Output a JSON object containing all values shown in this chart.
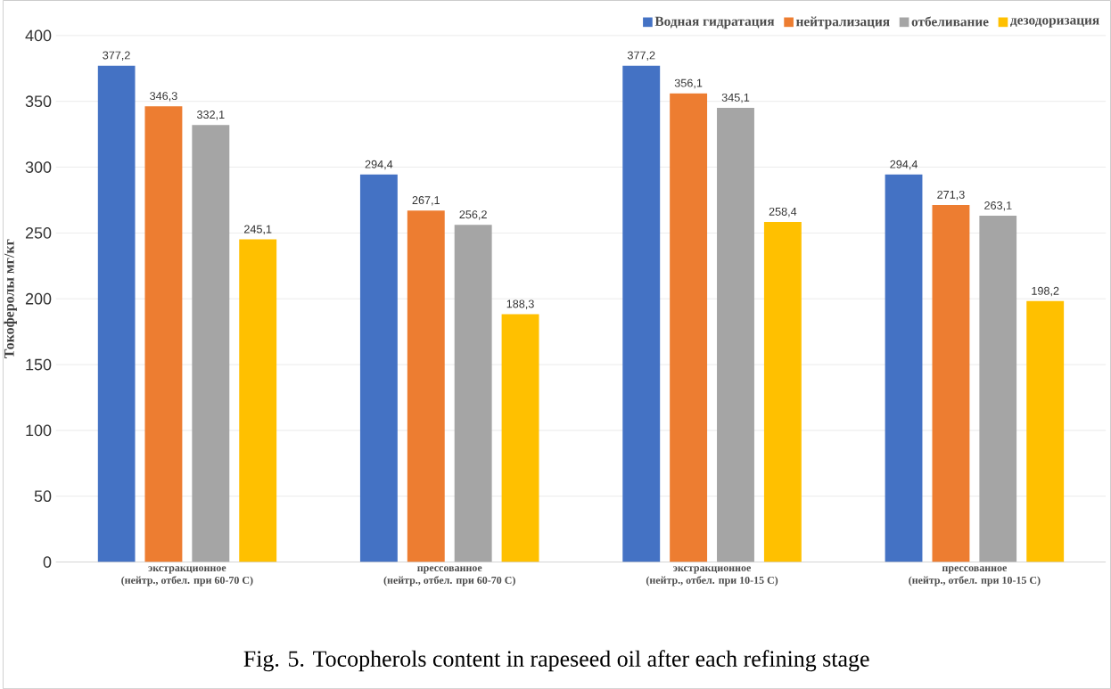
{
  "chart_data": {
    "type": "bar",
    "categories": [
      "экстракционное\n(нейтр., отбел. при 60-70 С)",
      "прессованное\n(нейтр., отбел. при 60-70 С)",
      "экстракционное\n(нейтр., отбел. при 10-15 С)",
      "прессованное\n(нейтр., отбел. при 10-15 С)"
    ],
    "series": [
      {
        "name": "Водная гидратация",
        "color": "#4472c4",
        "values": [
          377.2,
          294.4,
          377.2,
          294.4
        ],
        "value_labels": [
          "377,2",
          "294,4",
          "377,2",
          "294,4"
        ]
      },
      {
        "name": "нейтрализация",
        "color": "#ed7d31",
        "values": [
          346.3,
          267.1,
          356.1,
          271.3
        ],
        "value_labels": [
          "346,3",
          "267,1",
          "356,1",
          "271,3"
        ]
      },
      {
        "name": "отбеливание",
        "color": "#a5a5a5",
        "values": [
          332.1,
          256.2,
          345.1,
          263.1
        ],
        "value_labels": [
          "332,1",
          "256,2",
          "345,1",
          "263,1"
        ]
      },
      {
        "name": "дезодоризация",
        "color": "#ffc000",
        "values": [
          245.1,
          188.3,
          258.4,
          198.2
        ],
        "value_labels": [
          "245,1",
          "188,3",
          "258,4",
          "198,2"
        ]
      }
    ],
    "ylabel": "Токоферолы мг/кг",
    "ylim": [
      0,
      400
    ],
    "yticks": [
      0,
      50,
      100,
      150,
      200,
      250,
      300,
      350,
      400
    ],
    "grid": "y",
    "legend": "top right",
    "annotations": [
      "Fig. 5. Tocopherols content in rapeseed oil after each refining stage"
    ]
  }
}
